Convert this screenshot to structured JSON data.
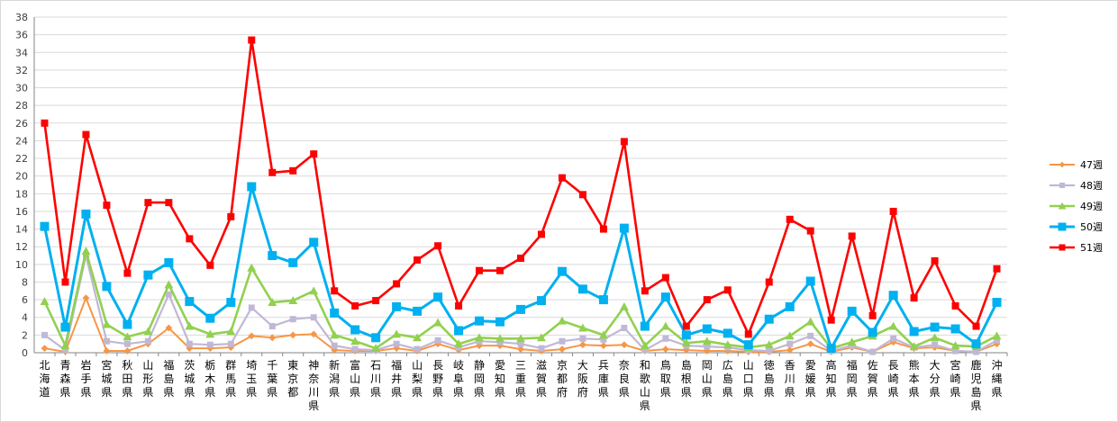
{
  "chart_data": {
    "type": "line",
    "title": "",
    "xlabel": "",
    "ylabel": "",
    "ylim": [
      0,
      38
    ],
    "yticks": [
      0,
      2,
      4,
      6,
      8,
      10,
      12,
      14,
      16,
      18,
      20,
      22,
      24,
      26,
      28,
      30,
      32,
      34,
      36,
      38
    ],
    "grid": "horizontal",
    "legend": "right",
    "categories": [
      "北海道",
      "青森県",
      "岩手県",
      "宮城県",
      "秋田県",
      "山形県",
      "福島県",
      "茨城県",
      "栃木県",
      "群馬県",
      "埼玉県",
      "千葉県",
      "東京都",
      "神奈川県",
      "新潟県",
      "富山県",
      "石川県",
      "福井県",
      "山梨県",
      "長野県",
      "岐阜県",
      "静岡県",
      "愛知県",
      "三重県",
      "滋賀県",
      "京都府",
      "大阪府",
      "兵庫県",
      "奈良県",
      "和歌山県",
      "鳥取県",
      "島根県",
      "岡山県",
      "広島県",
      "山口県",
      "徳島県",
      "香川県",
      "愛媛県",
      "高知県",
      "福岡県",
      "佐賀県",
      "長崎県",
      "熊本県",
      "大分県",
      "宮崎県",
      "鹿児島県",
      "沖縄県"
    ],
    "series": [
      {
        "name": "47週",
        "color": "#f79646",
        "marker": "diamond",
        "values": [
          0.5,
          0.1,
          6.2,
          0.2,
          0.2,
          1.0,
          2.8,
          0.5,
          0.5,
          0.6,
          1.9,
          1.7,
          2.0,
          2.1,
          0.3,
          0.2,
          0.2,
          0.5,
          0.2,
          1.0,
          0.3,
          0.8,
          0.8,
          0.4,
          0.2,
          0.4,
          0.9,
          0.8,
          0.9,
          0.2,
          0.4,
          0.3,
          0.2,
          0.2,
          0.1,
          0.1,
          0.3,
          1.0,
          0.1,
          0.6,
          0.1,
          1.2,
          0.5,
          0.6,
          0.2,
          0.1,
          1.0
        ]
      },
      {
        "name": "48週",
        "color": "#c0b8d6",
        "marker": "square",
        "values": [
          2.0,
          0.3,
          11.0,
          1.3,
          1.0,
          1.3,
          6.6,
          1.0,
          0.9,
          1.0,
          5.1,
          3.0,
          3.8,
          4.0,
          0.8,
          0.4,
          0.3,
          1.0,
          0.4,
          1.4,
          0.6,
          1.3,
          1.2,
          1.0,
          0.5,
          1.3,
          1.6,
          1.5,
          2.8,
          0.3,
          1.6,
          0.8,
          0.7,
          0.6,
          0.3,
          0.2,
          1.0,
          1.9,
          0.2,
          0.8,
          0.1,
          1.6,
          0.6,
          0.9,
          0.2,
          0.1,
          1.4
        ]
      },
      {
        "name": "49週",
        "color": "#92d050",
        "marker": "triangle",
        "values": [
          5.8,
          0.8,
          11.5,
          3.2,
          1.8,
          2.4,
          7.7,
          3.0,
          2.1,
          2.4,
          9.6,
          5.7,
          5.9,
          7.0,
          2.0,
          1.3,
          0.5,
          2.1,
          1.7,
          3.4,
          1.0,
          1.7,
          1.6,
          1.6,
          1.7,
          3.6,
          2.8,
          2.0,
          5.2,
          0.8,
          3.0,
          1.1,
          1.3,
          0.9,
          0.6,
          0.9,
          1.9,
          3.5,
          0.5,
          1.2,
          1.9,
          3.0,
          0.7,
          1.7,
          0.8,
          0.7,
          1.9
        ]
      },
      {
        "name": "50週",
        "color": "#00b0f0",
        "marker": "square",
        "values": [
          14.3,
          2.9,
          15.7,
          7.5,
          3.2,
          8.8,
          10.2,
          5.8,
          3.9,
          5.7,
          18.8,
          11.0,
          10.2,
          12.5,
          4.5,
          2.6,
          1.7,
          5.2,
          4.7,
          6.3,
          2.5,
          3.6,
          3.5,
          4.9,
          5.9,
          9.2,
          7.2,
          6.0,
          14.1,
          3.0,
          6.3,
          2.0,
          2.7,
          2.2,
          0.9,
          3.8,
          5.2,
          8.1,
          0.5,
          4.7,
          2.3,
          6.5,
          2.4,
          2.9,
          2.7,
          1.0,
          5.7
        ]
      },
      {
        "name": "51週",
        "color": "#ff0000",
        "marker": "square",
        "values": [
          26.0,
          8.0,
          24.7,
          16.7,
          9.0,
          17.0,
          17.0,
          12.9,
          9.9,
          15.4,
          35.4,
          20.4,
          20.6,
          22.5,
          7.0,
          5.3,
          5.9,
          7.8,
          10.5,
          12.1,
          5.3,
          9.3,
          9.3,
          10.7,
          13.4,
          19.8,
          17.9,
          14.0,
          23.9,
          7.0,
          8.5,
          3.0,
          6.0,
          7.1,
          2.1,
          8.0,
          15.1,
          13.8,
          3.7,
          13.2,
          4.2,
          16.0,
          6.2,
          10.4,
          5.3,
          3.0,
          9.5
        ]
      }
    ]
  }
}
